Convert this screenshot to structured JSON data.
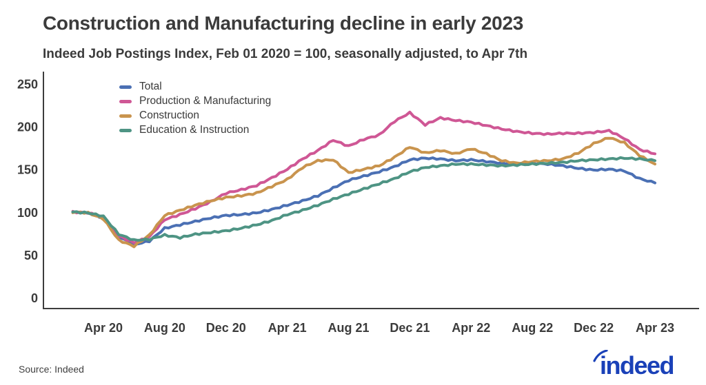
{
  "header": {
    "title": "Construction and Manufacturing decline in early 2023",
    "subtitle": "Indeed Job Postings Index, Feb 01 2020 = 100, seasonally adjusted, to Apr 7th"
  },
  "footer": {
    "source": "Source: Indeed",
    "logo_text": "indeed",
    "logo_color": "#1A41B8"
  },
  "chart_data": {
    "type": "line",
    "title": "Construction and Manufacturing decline in early 2023",
    "xlabel": "",
    "ylabel": "",
    "ylim": [
      0,
      250
    ],
    "y_ticks": [
      0,
      50,
      100,
      150,
      200,
      250
    ],
    "grid": false,
    "legend_position": "top-left-inside",
    "axis_color": "#3d3d3d",
    "tick_label_color": "#3b3b3b",
    "x_tick_labels": [
      "Apr 20",
      "Aug 20",
      "Dec 20",
      "Apr 21",
      "Aug 21",
      "Dec 21",
      "Apr 22",
      "Aug 22",
      "Dec 22",
      "Apr 23"
    ],
    "x_tick_month_indices": [
      2,
      6,
      10,
      14,
      18,
      22,
      26,
      30,
      34,
      38
    ],
    "months": [
      "Feb 20",
      "Mar 20",
      "Apr 20",
      "May 20",
      "Jun 20",
      "Jul 20",
      "Aug 20",
      "Sep 20",
      "Oct 20",
      "Nov 20",
      "Dec 20",
      "Jan 21",
      "Feb 21",
      "Mar 21",
      "Apr 21",
      "May 21",
      "Jun 21",
      "Jul 21",
      "Aug 21",
      "Sep 21",
      "Oct 21",
      "Nov 21",
      "Dec 21",
      "Jan 22",
      "Feb 22",
      "Mar 22",
      "Apr 22",
      "May 22",
      "Jun 22",
      "Jul 22",
      "Aug 22",
      "Sep 22",
      "Oct 22",
      "Nov 22",
      "Dec 22",
      "Jan 23",
      "Feb 23",
      "Mar 23",
      "Apr 23"
    ],
    "series": [
      {
        "name": "Total",
        "color": "#4B70B4",
        "values": [
          100,
          99,
          93,
          71,
          62,
          66,
          81,
          85,
          89,
          93,
          96,
          97,
          99,
          103,
          108,
          113,
          119,
          128,
          137,
          142,
          147,
          153,
          161,
          163,
          162,
          160,
          161,
          159,
          157,
          156,
          157,
          156,
          154,
          151,
          149,
          150,
          148,
          139,
          134
        ]
      },
      {
        "name": "Production & Manufacturing",
        "color": "#CF5795",
        "values": [
          100,
          99,
          94,
          72,
          64,
          71,
          91,
          97,
          104,
          112,
          122,
          126,
          131,
          140,
          150,
          162,
          172,
          184,
          177,
          185,
          190,
          206,
          216,
          202,
          210,
          207,
          205,
          201,
          197,
          194,
          192,
          191,
          192,
          192,
          193,
          195,
          186,
          173,
          168
        ]
      },
      {
        "name": "Construction",
        "color": "#C9944E",
        "values": [
          100,
          99,
          92,
          67,
          60,
          73,
          96,
          102,
          108,
          113,
          117,
          119,
          122,
          130,
          138,
          152,
          160,
          161,
          146,
          150,
          154,
          164,
          176,
          169,
          172,
          168,
          174,
          168,
          160,
          157,
          159,
          160,
          162,
          169,
          180,
          187,
          181,
          166,
          156
        ]
      },
      {
        "name": "Education & Instruction",
        "color": "#4E9484",
        "values": [
          100,
          99,
          95,
          74,
          67,
          68,
          73,
          70,
          74,
          76,
          78,
          81,
          85,
          90,
          97,
          102,
          108,
          115,
          121,
          127,
          133,
          139,
          147,
          152,
          154,
          156,
          156,
          155,
          154,
          155,
          156,
          157,
          158,
          160,
          161,
          162,
          163,
          162,
          160
        ]
      }
    ]
  }
}
